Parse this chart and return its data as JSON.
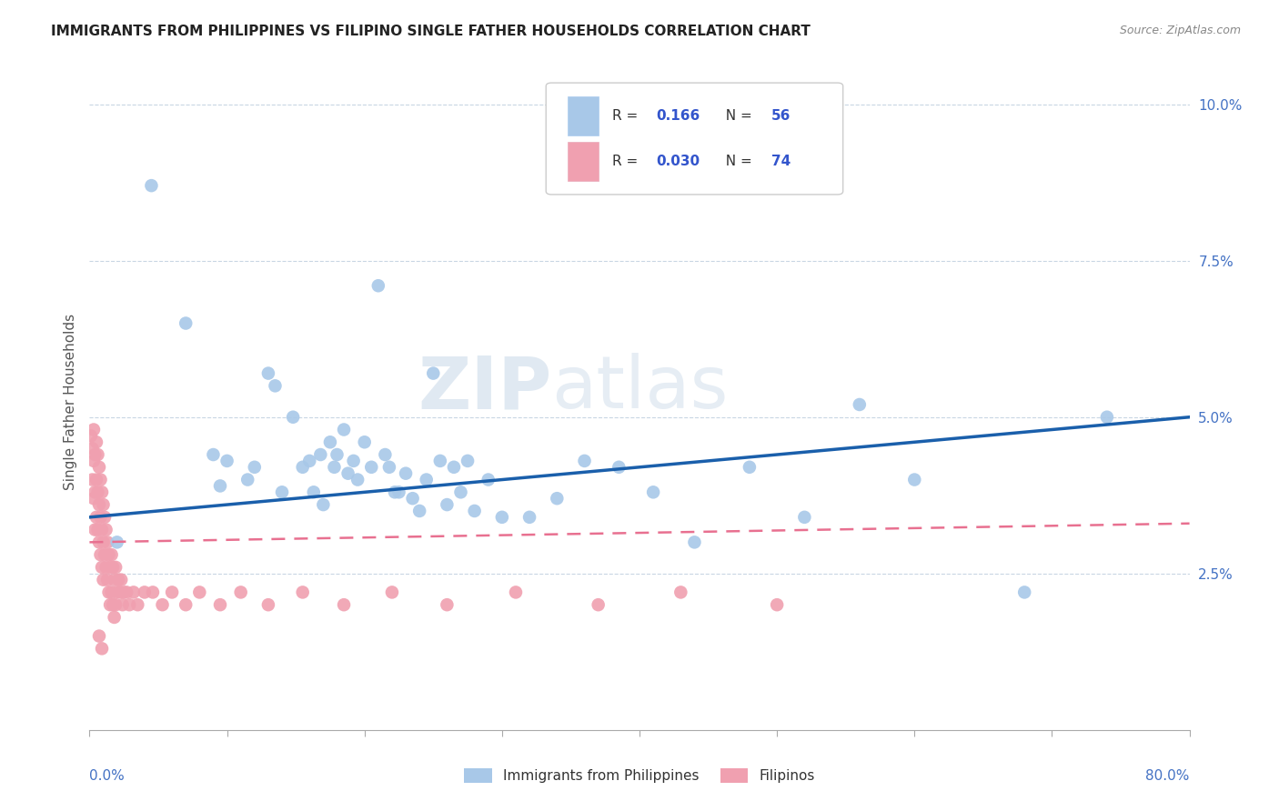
{
  "title": "IMMIGRANTS FROM PHILIPPINES VS FILIPINO SINGLE FATHER HOUSEHOLDS CORRELATION CHART",
  "source": "Source: ZipAtlas.com",
  "ylabel": "Single Father Households",
  "legend1_label": "Immigrants from Philippines",
  "legend2_label": "Filipinos",
  "R1": "0.166",
  "N1": "56",
  "R2": "0.030",
  "N2": "74",
  "blue_color": "#A8C8E8",
  "pink_color": "#F0A0B0",
  "blue_line_color": "#1A5FAB",
  "pink_line_color": "#E87090",
  "watermark_zip": "ZIP",
  "watermark_atlas": "atlas",
  "ytick_labels": [
    "2.5%",
    "5.0%",
    "7.5%",
    "10.0%"
  ],
  "ytick_values": [
    0.025,
    0.05,
    0.075,
    0.1
  ],
  "xlim": [
    0.0,
    0.8
  ],
  "ylim": [
    0.0,
    0.105
  ],
  "blue_line_x": [
    0.0,
    0.8
  ],
  "blue_line_y": [
    0.034,
    0.05
  ],
  "pink_line_x": [
    0.0,
    0.8
  ],
  "pink_line_y": [
    0.03,
    0.033
  ],
  "blue_x": [
    0.02,
    0.045,
    0.07,
    0.09,
    0.095,
    0.1,
    0.115,
    0.12,
    0.13,
    0.135,
    0.14,
    0.148,
    0.155,
    0.16,
    0.163,
    0.168,
    0.17,
    0.175,
    0.178,
    0.18,
    0.185,
    0.188,
    0.192,
    0.195,
    0.2,
    0.205,
    0.21,
    0.215,
    0.218,
    0.222,
    0.225,
    0.23,
    0.235,
    0.24,
    0.245,
    0.25,
    0.255,
    0.26,
    0.265,
    0.27,
    0.275,
    0.28,
    0.29,
    0.3,
    0.32,
    0.34,
    0.36,
    0.385,
    0.41,
    0.44,
    0.48,
    0.52,
    0.56,
    0.6,
    0.68,
    0.74
  ],
  "blue_y": [
    0.03,
    0.087,
    0.065,
    0.044,
    0.039,
    0.043,
    0.04,
    0.042,
    0.057,
    0.055,
    0.038,
    0.05,
    0.042,
    0.043,
    0.038,
    0.044,
    0.036,
    0.046,
    0.042,
    0.044,
    0.048,
    0.041,
    0.043,
    0.04,
    0.046,
    0.042,
    0.071,
    0.044,
    0.042,
    0.038,
    0.038,
    0.041,
    0.037,
    0.035,
    0.04,
    0.057,
    0.043,
    0.036,
    0.042,
    0.038,
    0.043,
    0.035,
    0.04,
    0.034,
    0.034,
    0.037,
    0.043,
    0.042,
    0.038,
    0.03,
    0.042,
    0.034,
    0.052,
    0.04,
    0.022,
    0.05
  ],
  "pink_x": [
    0.001,
    0.002,
    0.002,
    0.003,
    0.003,
    0.003,
    0.004,
    0.004,
    0.004,
    0.005,
    0.005,
    0.005,
    0.006,
    0.006,
    0.006,
    0.007,
    0.007,
    0.007,
    0.008,
    0.008,
    0.008,
    0.009,
    0.009,
    0.009,
    0.01,
    0.01,
    0.01,
    0.011,
    0.011,
    0.012,
    0.012,
    0.013,
    0.013,
    0.014,
    0.014,
    0.015,
    0.015,
    0.016,
    0.016,
    0.017,
    0.017,
    0.018,
    0.018,
    0.019,
    0.019,
    0.02,
    0.021,
    0.022,
    0.023,
    0.024,
    0.025,
    0.027,
    0.029,
    0.032,
    0.035,
    0.04,
    0.046,
    0.053,
    0.06,
    0.07,
    0.08,
    0.095,
    0.11,
    0.13,
    0.155,
    0.185,
    0.22,
    0.26,
    0.31,
    0.37,
    0.43,
    0.5,
    0.007,
    0.009
  ],
  "pink_y": [
    0.047,
    0.045,
    0.04,
    0.048,
    0.043,
    0.037,
    0.044,
    0.038,
    0.032,
    0.046,
    0.04,
    0.034,
    0.044,
    0.038,
    0.032,
    0.042,
    0.036,
    0.03,
    0.04,
    0.034,
    0.028,
    0.038,
    0.032,
    0.026,
    0.036,
    0.03,
    0.024,
    0.034,
    0.028,
    0.032,
    0.026,
    0.03,
    0.024,
    0.028,
    0.022,
    0.026,
    0.02,
    0.028,
    0.022,
    0.026,
    0.02,
    0.024,
    0.018,
    0.026,
    0.02,
    0.022,
    0.024,
    0.022,
    0.024,
    0.02,
    0.022,
    0.022,
    0.02,
    0.022,
    0.02,
    0.022,
    0.022,
    0.02,
    0.022,
    0.02,
    0.022,
    0.02,
    0.022,
    0.02,
    0.022,
    0.02,
    0.022,
    0.02,
    0.022,
    0.02,
    0.022,
    0.02,
    0.015,
    0.013
  ]
}
